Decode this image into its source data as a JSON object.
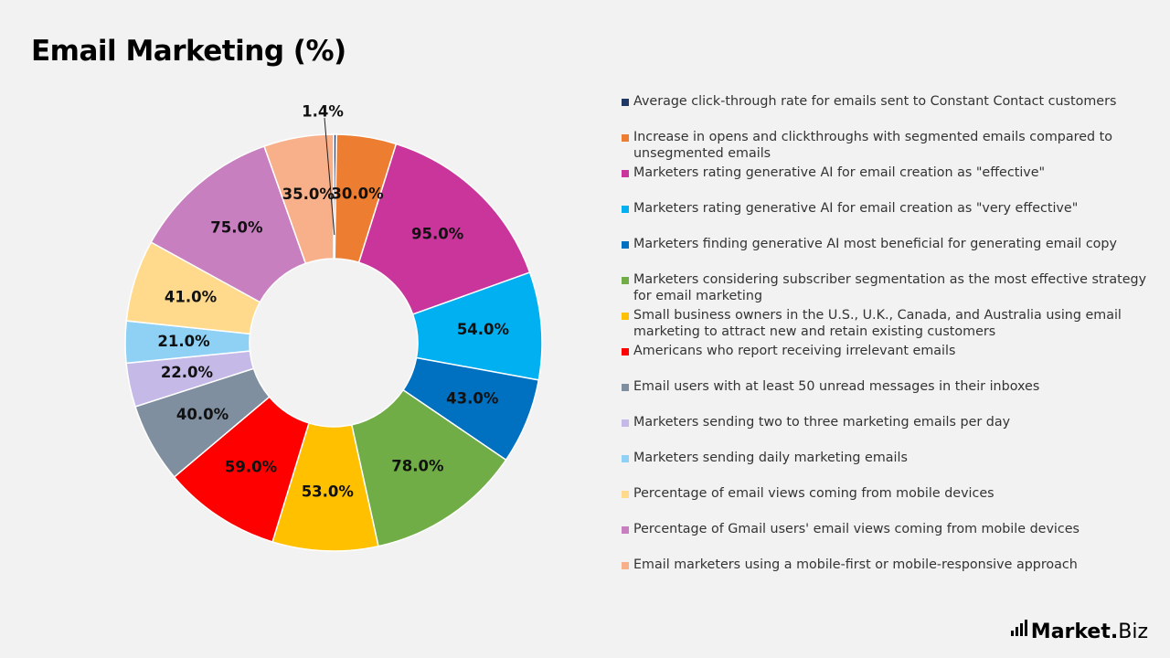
{
  "page": {
    "title": "Email Marketing (%)",
    "logo": {
      "word": "Market",
      "dot": ".",
      "suffix": "Biz"
    }
  },
  "chart_data": {
    "type": "pie",
    "variant": "donut",
    "title": "Email Marketing (%)",
    "legend_position": "right",
    "slices": [
      {
        "label": "Average click-through rate for emails sent to Constant Contact customers",
        "value": 1.4,
        "display": "1.4%",
        "color": "#1f3864"
      },
      {
        "label": "Increase in opens and clickthroughs with segmented emails compared to unsegmented emails",
        "value": 30.0,
        "display": "30.0%",
        "color": "#ed7d31"
      },
      {
        "label": "Marketers rating generative AI for email creation as \"effective\"",
        "value": 95.0,
        "display": "95.0%",
        "color": "#c9359b"
      },
      {
        "label": "Marketers rating generative AI for email creation as \"very effective\"",
        "value": 54.0,
        "display": "54.0%",
        "color": "#00b0f0"
      },
      {
        "label": "Marketers finding generative AI most beneficial for generating email copy",
        "value": 43.0,
        "display": "43.0%",
        "color": "#0070c0"
      },
      {
        "label": "Marketers considering subscriber segmentation as the most effective strategy for email marketing",
        "value": 78.0,
        "display": "78.0%",
        "color": "#70ad47"
      },
      {
        "label": "Small business owners in the U.S., U.K., Canada, and Australia using email marketing to attract new and retain existing customers",
        "value": 53.0,
        "display": "53.0%",
        "color": "#ffc000"
      },
      {
        "label": "Americans who report receiving irrelevant emails",
        "value": 59.0,
        "display": "59.0%",
        "color": "#ff0000"
      },
      {
        "label": "Email users with at least 50 unread messages in their inboxes",
        "value": 40.0,
        "display": "40.0%",
        "color": "#7f8fa0"
      },
      {
        "label": "Marketers sending two to three marketing emails per day",
        "value": 22.0,
        "display": "22.0%",
        "color": "#c5b9e8"
      },
      {
        "label": "Marketers sending daily marketing emails",
        "value": 21.0,
        "display": "21.0%",
        "color": "#8fd0f5"
      },
      {
        "label": "Percentage of email views coming from mobile devices",
        "value": 41.0,
        "display": "41.0%",
        "color": "#ffd98c"
      },
      {
        "label": "Percentage of Gmail users' email views coming from mobile devices",
        "value": 75.0,
        "display": "75.0%",
        "color": "#c77fc0"
      },
      {
        "label": "Email marketers using a mobile-first or mobile-responsive approach",
        "value": 35.0,
        "display": "35.0%",
        "color": "#f8b08a"
      }
    ]
  }
}
